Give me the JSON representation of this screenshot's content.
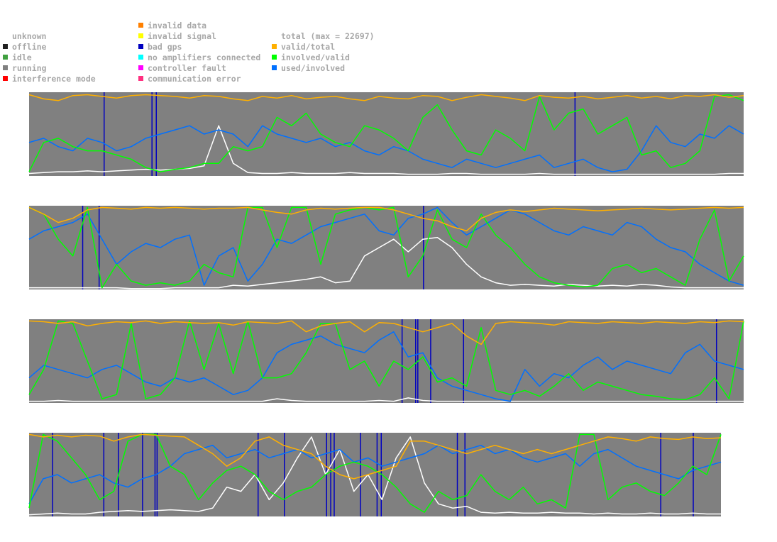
{
  "legend": {
    "status": [
      {
        "label": "unknown",
        "color": ""
      },
      {
        "label": "offline",
        "color": "#202020"
      },
      {
        "label": "idle",
        "color": "#40a040"
      },
      {
        "label": "running",
        "color": "#808080"
      },
      {
        "label": "interference mode",
        "color": "#ff0000"
      }
    ],
    "errors": [
      {
        "label": "invalid data",
        "color": "#ff8000"
      },
      {
        "label": "invalid signal",
        "color": "#ffff00"
      },
      {
        "label": "bad gps",
        "color": "#0000c0"
      },
      {
        "label": "no amplifiers connected",
        "color": "#00ffff"
      },
      {
        "label": "controller fault",
        "color": "#ff00ff"
      },
      {
        "label": "communication error",
        "color": "#ff3080"
      }
    ],
    "metrics": [
      {
        "label": "total (max = 22697)",
        "color": ""
      },
      {
        "label": "valid/total",
        "color": "#ffb000"
      },
      {
        "label": "involved/valid",
        "color": "#00ff00"
      },
      {
        "label": "used/involved",
        "color": "#0070ff"
      }
    ]
  },
  "chart_data": {
    "type": "line",
    "ylim": [
      0,
      1
    ],
    "background_status": "running",
    "total_max": 22697,
    "series_colors": {
      "valid/total": "#ffb000",
      "involved/valid": "#00ff00",
      "used/involved": "#0070ff",
      "total": "#ffffff",
      "bad gps": "#0000c0"
    },
    "panels": [
      {
        "row": 1,
        "series": {
          "valid/total": [
            0.97,
            0.92,
            0.9,
            0.96,
            0.97,
            0.95,
            0.93,
            0.96,
            0.97,
            0.96,
            0.95,
            0.93,
            0.96,
            0.95,
            0.92,
            0.9,
            0.95,
            0.93,
            0.96,
            0.92,
            0.94,
            0.95,
            0.92,
            0.9,
            0.95,
            0.93,
            0.92,
            0.96,
            0.95,
            0.9,
            0.94,
            0.97,
            0.95,
            0.93,
            0.9,
            0.96,
            0.94,
            0.93,
            0.95,
            0.92,
            0.94,
            0.96,
            0.93,
            0.95,
            0.92,
            0.96,
            0.95,
            0.97,
            0.94,
            0.96
          ],
          "involved/valid": [
            0.05,
            0.4,
            0.45,
            0.35,
            0.3,
            0.3,
            0.25,
            0.2,
            0.1,
            0.05,
            0.08,
            0.1,
            0.15,
            0.15,
            0.35,
            0.3,
            0.35,
            0.7,
            0.6,
            0.75,
            0.5,
            0.4,
            0.35,
            0.6,
            0.55,
            0.45,
            0.3,
            0.7,
            0.85,
            0.55,
            0.3,
            0.25,
            0.55,
            0.45,
            0.3,
            0.95,
            0.55,
            0.75,
            0.8,
            0.5,
            0.6,
            0.7,
            0.25,
            0.3,
            0.1,
            0.15,
            0.3,
            0.95,
            0.97,
            0.9
          ],
          "used/involved": [
            0.4,
            0.45,
            0.35,
            0.3,
            0.45,
            0.4,
            0.3,
            0.35,
            0.45,
            0.5,
            0.55,
            0.6,
            0.5,
            0.55,
            0.5,
            0.35,
            0.6,
            0.5,
            0.45,
            0.4,
            0.45,
            0.35,
            0.4,
            0.3,
            0.25,
            0.35,
            0.3,
            0.2,
            0.15,
            0.1,
            0.2,
            0.15,
            0.1,
            0.15,
            0.2,
            0.25,
            0.1,
            0.15,
            0.2,
            0.1,
            0.05,
            0.08,
            0.3,
            0.6,
            0.4,
            0.35,
            0.5,
            0.45,
            0.6,
            0.5
          ],
          "total": [
            0.03,
            0.04,
            0.05,
            0.05,
            0.06,
            0.05,
            0.06,
            0.07,
            0.08,
            0.07,
            0.08,
            0.09,
            0.12,
            0.6,
            0.15,
            0.04,
            0.03,
            0.03,
            0.04,
            0.03,
            0.03,
            0.03,
            0.04,
            0.03,
            0.03,
            0.03,
            0.02,
            0.02,
            0.02,
            0.03,
            0.03,
            0.02,
            0.02,
            0.02,
            0.02,
            0.03,
            0.02,
            0.02,
            0.02,
            0.02,
            0.02,
            0.02,
            0.02,
            0.02,
            0.02,
            0.02,
            0.02,
            0.02,
            0.03,
            0.03
          ]
        },
        "bad_gps": [
          0.105,
          0.172,
          0.178,
          0.764
        ]
      },
      {
        "row": 2,
        "series": {
          "valid/total": [
            0.98,
            0.9,
            0.8,
            0.85,
            0.95,
            0.98,
            0.97,
            0.96,
            0.98,
            0.97,
            0.98,
            0.97,
            0.96,
            0.97,
            0.97,
            0.98,
            0.95,
            0.92,
            0.9,
            0.95,
            0.97,
            0.96,
            0.97,
            0.98,
            0.98,
            0.95,
            0.9,
            0.85,
            0.82,
            0.75,
            0.7,
            0.85,
            0.92,
            0.95,
            0.93,
            0.95,
            0.97,
            0.96,
            0.95,
            0.94,
            0.95,
            0.96,
            0.97,
            0.96,
            0.95,
            0.96,
            0.97,
            0.98,
            0.97,
            0.98
          ],
          "involved/valid": [
            0.98,
            0.9,
            0.6,
            0.4,
            0.98,
            0.02,
            0.3,
            0.1,
            0.05,
            0.08,
            0.05,
            0.1,
            0.3,
            0.2,
            0.15,
            0.98,
            0.98,
            0.5,
            0.98,
            0.98,
            0.3,
            0.9,
            0.95,
            0.98,
            0.95,
            0.98,
            0.15,
            0.4,
            0.95,
            0.6,
            0.5,
            0.9,
            0.65,
            0.5,
            0.3,
            0.15,
            0.08,
            0.05,
            0.03,
            0.05,
            0.25,
            0.3,
            0.2,
            0.25,
            0.15,
            0.05,
            0.6,
            0.95,
            0.1,
            0.4
          ],
          "used/involved": [
            0.6,
            0.7,
            0.75,
            0.8,
            0.9,
            0.6,
            0.3,
            0.45,
            0.55,
            0.5,
            0.6,
            0.65,
            0.05,
            0.4,
            0.5,
            0.1,
            0.3,
            0.6,
            0.55,
            0.65,
            0.75,
            0.8,
            0.85,
            0.9,
            0.7,
            0.65,
            0.85,
            0.9,
            0.98,
            0.8,
            0.65,
            0.75,
            0.85,
            0.95,
            0.9,
            0.8,
            0.7,
            0.65,
            0.75,
            0.7,
            0.65,
            0.8,
            0.75,
            0.6,
            0.5,
            0.45,
            0.3,
            0.2,
            0.1,
            0.05
          ],
          "total": [
            0.02,
            0.02,
            0.02,
            0.02,
            0.02,
            0.02,
            0.02,
            0.01,
            0.01,
            0.01,
            0.02,
            0.02,
            0.02,
            0.02,
            0.05,
            0.04,
            0.06,
            0.08,
            0.1,
            0.12,
            0.15,
            0.08,
            0.1,
            0.4,
            0.5,
            0.6,
            0.45,
            0.6,
            0.62,
            0.5,
            0.3,
            0.15,
            0.08,
            0.05,
            0.06,
            0.05,
            0.04,
            0.06,
            0.05,
            0.04,
            0.05,
            0.04,
            0.06,
            0.05,
            0.03,
            0.02,
            0.02,
            0.02,
            0.02,
            0.02
          ]
        },
        "bad_gps": [
          0.075,
          0.098,
          0.552
        ]
      },
      {
        "row": 3,
        "series": {
          "valid/total": [
            0.98,
            0.97,
            0.95,
            0.97,
            0.92,
            0.95,
            0.97,
            0.96,
            0.98,
            0.95,
            0.97,
            0.96,
            0.95,
            0.96,
            0.93,
            0.97,
            0.96,
            0.95,
            0.98,
            0.85,
            0.92,
            0.95,
            0.97,
            0.85,
            0.96,
            0.95,
            0.9,
            0.85,
            0.9,
            0.95,
            0.8,
            0.7,
            0.95,
            0.97,
            0.96,
            0.95,
            0.93,
            0.97,
            0.96,
            0.95,
            0.97,
            0.96,
            0.95,
            0.97,
            0.96,
            0.95,
            0.97,
            0.96,
            0.98,
            0.97
          ],
          "involved/valid": [
            0.1,
            0.4,
            0.98,
            0.95,
            0.5,
            0.05,
            0.1,
            0.95,
            0.05,
            0.1,
            0.3,
            0.98,
            0.4,
            0.95,
            0.35,
            0.98,
            0.3,
            0.3,
            0.35,
            0.6,
            0.95,
            0.95,
            0.4,
            0.5,
            0.2,
            0.5,
            0.4,
            0.55,
            0.25,
            0.3,
            0.2,
            0.9,
            0.15,
            0.1,
            0.15,
            0.08,
            0.2,
            0.35,
            0.15,
            0.25,
            0.2,
            0.15,
            0.1,
            0.08,
            0.05,
            0.04,
            0.1,
            0.3,
            0.05,
            0.98
          ],
          "used/involved": [
            0.3,
            0.45,
            0.4,
            0.35,
            0.3,
            0.4,
            0.45,
            0.35,
            0.25,
            0.2,
            0.3,
            0.25,
            0.3,
            0.2,
            0.1,
            0.15,
            0.3,
            0.6,
            0.7,
            0.75,
            0.8,
            0.7,
            0.65,
            0.6,
            0.75,
            0.85,
            0.55,
            0.6,
            0.3,
            0.2,
            0.15,
            0.1,
            0.05,
            0.02,
            0.4,
            0.2,
            0.35,
            0.3,
            0.45,
            0.55,
            0.4,
            0.5,
            0.45,
            0.4,
            0.35,
            0.6,
            0.7,
            0.5,
            0.45,
            0.4
          ],
          "total": [
            0.02,
            0.02,
            0.03,
            0.02,
            0.02,
            0.02,
            0.02,
            0.02,
            0.02,
            0.02,
            0.02,
            0.02,
            0.02,
            0.02,
            0.02,
            0.02,
            0.02,
            0.05,
            0.03,
            0.02,
            0.02,
            0.02,
            0.02,
            0.02,
            0.03,
            0.02,
            0.06,
            0.03,
            0.02,
            0.02,
            0.02,
            0.02,
            0.02,
            0.02,
            0.02,
            0.02,
            0.02,
            0.02,
            0.02,
            0.02,
            0.02,
            0.02,
            0.02,
            0.02,
            0.02,
            0.02,
            0.02,
            0.02,
            0.02,
            0.02
          ]
        },
        "bad_gps": [
          0.522,
          0.541,
          0.544,
          0.562,
          0.608,
          0.962
        ]
      },
      {
        "row": 4,
        "series": {
          "valid/total": [
            0.98,
            0.95,
            0.97,
            0.95,
            0.97,
            0.96,
            0.9,
            0.95,
            0.98,
            0.97,
            0.96,
            0.95,
            0.85,
            0.75,
            0.6,
            0.7,
            0.9,
            0.95,
            0.85,
            0.8,
            0.75,
            0.6,
            0.5,
            0.45,
            0.5,
            0.55,
            0.6,
            0.9,
            0.9,
            0.85,
            0.8,
            0.75,
            0.8,
            0.85,
            0.8,
            0.75,
            0.8,
            0.75,
            0.8,
            0.85,
            0.9,
            0.95,
            0.93,
            0.9,
            0.95,
            0.93,
            0.92,
            0.95,
            0.93,
            0.94
          ],
          "involved/valid": [
            0.1,
            0.98,
            0.9,
            0.7,
            0.5,
            0.2,
            0.3,
            0.9,
            0.98,
            0.98,
            0.6,
            0.5,
            0.2,
            0.4,
            0.55,
            0.6,
            0.5,
            0.3,
            0.2,
            0.3,
            0.35,
            0.5,
            0.6,
            0.65,
            0.6,
            0.5,
            0.35,
            0.15,
            0.05,
            0.3,
            0.2,
            0.25,
            0.5,
            0.3,
            0.2,
            0.35,
            0.15,
            0.2,
            0.1,
            0.98,
            0.98,
            0.2,
            0.35,
            0.4,
            0.3,
            0.25,
            0.4,
            0.6,
            0.5,
            0.98
          ],
          "used/involved": [
            0.15,
            0.45,
            0.5,
            0.4,
            0.45,
            0.5,
            0.4,
            0.35,
            0.45,
            0.5,
            0.6,
            0.75,
            0.8,
            0.85,
            0.7,
            0.75,
            0.8,
            0.7,
            0.75,
            0.8,
            0.7,
            0.75,
            0.8,
            0.65,
            0.7,
            0.6,
            0.65,
            0.7,
            0.75,
            0.85,
            0.75,
            0.8,
            0.85,
            0.75,
            0.8,
            0.7,
            0.65,
            0.7,
            0.75,
            0.6,
            0.75,
            0.8,
            0.7,
            0.6,
            0.55,
            0.5,
            0.45,
            0.55,
            0.6,
            0.65
          ],
          "total": [
            0.02,
            0.03,
            0.04,
            0.03,
            0.03,
            0.05,
            0.06,
            0.07,
            0.06,
            0.07,
            0.08,
            0.07,
            0.06,
            0.1,
            0.35,
            0.3,
            0.5,
            0.2,
            0.4,
            0.7,
            0.95,
            0.5,
            0.8,
            0.3,
            0.5,
            0.2,
            0.7,
            0.95,
            0.4,
            0.15,
            0.1,
            0.12,
            0.05,
            0.04,
            0.05,
            0.04,
            0.04,
            0.05,
            0.04,
            0.04,
            0.03,
            0.04,
            0.03,
            0.03,
            0.04,
            0.03,
            0.03,
            0.04,
            0.03,
            0.03
          ]
        },
        "bad_gps": [
          0.034,
          0.108,
          0.129,
          0.164,
          0.182,
          0.185,
          0.331,
          0.369,
          0.43,
          0.436,
          0.441,
          0.479,
          0.503,
          0.509,
          0.619,
          0.63,
          0.913,
          0.96
        ]
      }
    ]
  }
}
